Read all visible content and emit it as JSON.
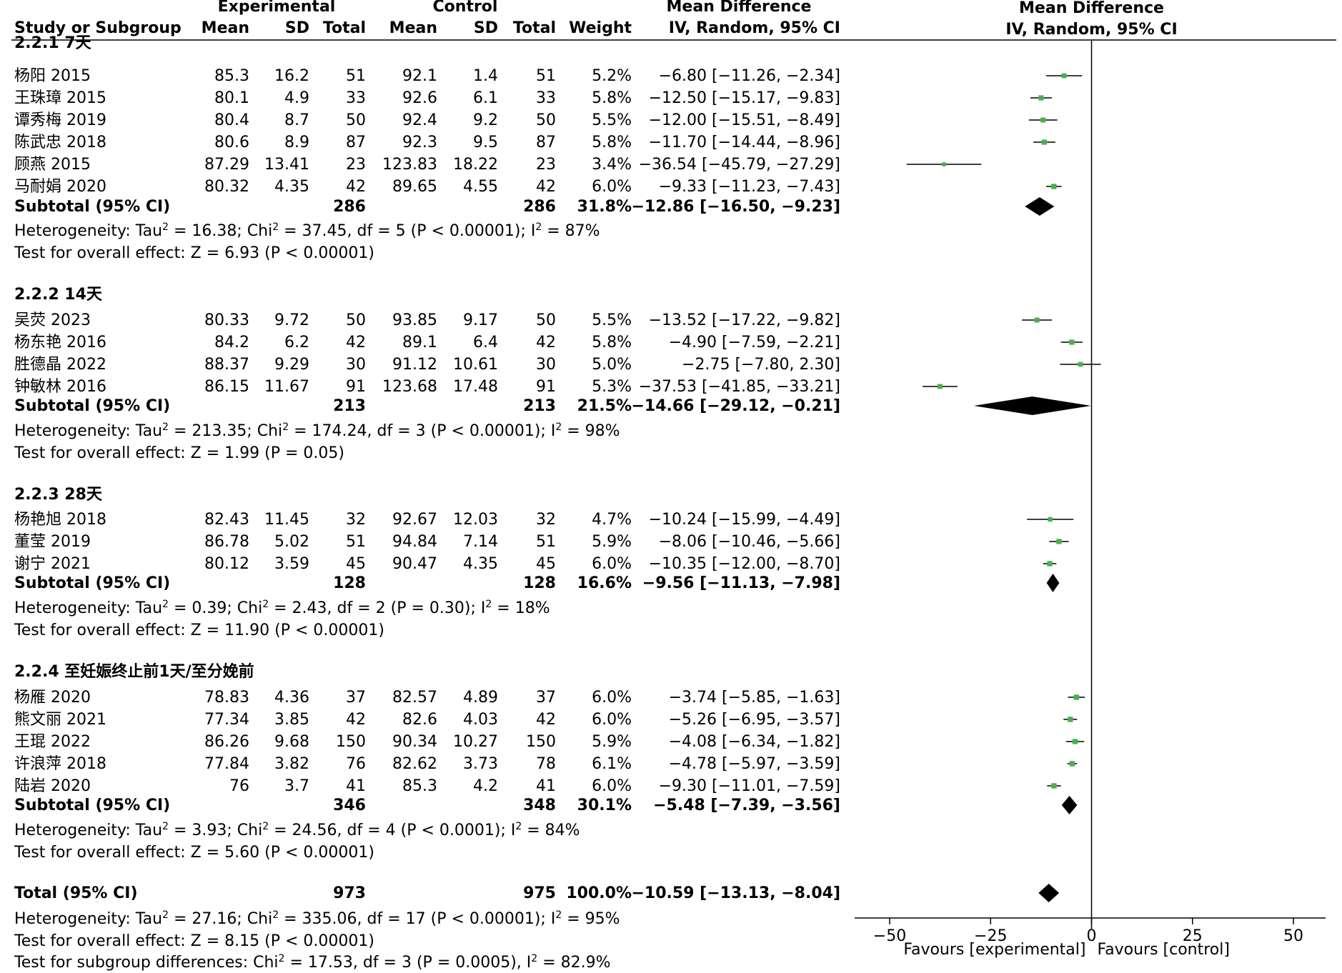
{
  "header": {
    "experimental": "Experimental",
    "control": "Control",
    "mean_difference_table": "Mean Difference",
    "mean_difference_plot": "Mean Difference",
    "study": "Study or Subgroup",
    "mean_e": "Mean",
    "sd_e": "SD",
    "total_e": "Total",
    "mean_c": "Mean",
    "sd_c": "SD",
    "total_c": "Total",
    "weight": "Weight",
    "method_table": "IV, Random, 95% CI",
    "method_plot": "IV, Random, 95% CI"
  },
  "subgroups": [
    {
      "title": "2.2.1 7天",
      "studies": [
        {
          "name": "杨阳 2015",
          "mean_e": "85.3",
          "sd_e": "16.2",
          "total_e": "51",
          "mean_c": "92.1",
          "sd_c": "1.4",
          "total_c": "51",
          "weight": "5.2%",
          "ci": "−6.80 [−11.26, −2.34]"
        },
        {
          "name": "王珠璋 2015",
          "mean_e": "80.1",
          "sd_e": "4.9",
          "total_e": "33",
          "mean_c": "92.6",
          "sd_c": "6.1",
          "total_c": "33",
          "weight": "5.8%",
          "ci": "−12.50 [−15.17, −9.83]"
        },
        {
          "name": "谭秀梅 2019",
          "mean_e": "80.4",
          "sd_e": "8.7",
          "total_e": "50",
          "mean_c": "92.4",
          "sd_c": "9.2",
          "total_c": "50",
          "weight": "5.5%",
          "ci": "−12.00 [−15.51, −8.49]"
        },
        {
          "name": "陈武忠 2018",
          "mean_e": "80.6",
          "sd_e": "8.9",
          "total_e": "87",
          "mean_c": "92.3",
          "sd_c": "9.5",
          "total_c": "87",
          "weight": "5.8%",
          "ci": "−11.70 [−14.44, −8.96]"
        },
        {
          "name": "顾燕 2015",
          "mean_e": "87.29",
          "sd_e": "13.41",
          "total_e": "23",
          "mean_c": "123.83",
          "sd_c": "18.22",
          "total_c": "23",
          "weight": "3.4%",
          "ci": "−36.54 [−45.79, −27.29]"
        },
        {
          "name": "马耐娟 2020",
          "mean_e": "80.32",
          "sd_e": "4.35",
          "total_e": "42",
          "mean_c": "89.65",
          "sd_c": "4.55",
          "total_c": "42",
          "weight": "6.0%",
          "ci": "−9.33 [−11.23, −7.43]"
        }
      ],
      "subtotal": {
        "label": "Subtotal (95% CI)",
        "total_e": "286",
        "total_c": "286",
        "weight": "31.8%",
        "ci": "−12.86 [−16.50, −9.23]"
      },
      "het_a": "Heterogeneity: Tau",
      "het_b": " = 16.38; Chi",
      "het_c": " = 37.45, df = 5 (P < 0.00001); I",
      "het_d": " = 87%",
      "overall": "Test for overall effect: Z = 6.93 (P < 0.00001)"
    },
    {
      "title": "2.2.2 14天",
      "studies": [
        {
          "name": "吴荧 2023",
          "mean_e": "80.33",
          "sd_e": "9.72",
          "total_e": "50",
          "mean_c": "93.85",
          "sd_c": "9.17",
          "total_c": "50",
          "weight": "5.5%",
          "ci": "−13.52 [−17.22, −9.82]"
        },
        {
          "name": "杨东艳 2016",
          "mean_e": "84.2",
          "sd_e": "6.2",
          "total_e": "42",
          "mean_c": "89.1",
          "sd_c": "6.4",
          "total_c": "42",
          "weight": "5.8%",
          "ci": "−4.90 [−7.59, −2.21]"
        },
        {
          "name": "胜德晶 2022",
          "mean_e": "88.37",
          "sd_e": "9.29",
          "total_e": "30",
          "mean_c": "91.12",
          "sd_c": "10.61",
          "total_c": "30",
          "weight": "5.0%",
          "ci": "−2.75 [−7.80, 2.30]"
        },
        {
          "name": "钟敏林 2016",
          "mean_e": "86.15",
          "sd_e": "11.67",
          "total_e": "91",
          "mean_c": "123.68",
          "sd_c": "17.48",
          "total_c": "91",
          "weight": "5.3%",
          "ci": "−37.53 [−41.85, −33.21]"
        }
      ],
      "subtotal": {
        "label": "Subtotal (95% CI)",
        "total_e": "213",
        "total_c": "213",
        "weight": "21.5%",
        "ci": "−14.66 [−29.12, −0.21]"
      },
      "het_a": "Heterogeneity: Tau",
      "het_b": " = 213.35; Chi",
      "het_c": " = 174.24, df = 3 (P < 0.00001); I",
      "het_d": " = 98%",
      "overall": "Test for overall effect: Z = 1.99 (P = 0.05)"
    },
    {
      "title": "2.2.3 28天",
      "studies": [
        {
          "name": "杨艳旭 2018",
          "mean_e": "82.43",
          "sd_e": "11.45",
          "total_e": "32",
          "mean_c": "92.67",
          "sd_c": "12.03",
          "total_c": "32",
          "weight": "4.7%",
          "ci": "−10.24 [−15.99, −4.49]"
        },
        {
          "name": "董莹 2019",
          "mean_e": "86.78",
          "sd_e": "5.02",
          "total_e": "51",
          "mean_c": "94.84",
          "sd_c": "7.14",
          "total_c": "51",
          "weight": "5.9%",
          "ci": "−8.06 [−10.46, −5.66]"
        },
        {
          "name": "谢宁 2021",
          "mean_e": "80.12",
          "sd_e": "3.59",
          "total_e": "45",
          "mean_c": "90.47",
          "sd_c": "4.35",
          "total_c": "45",
          "weight": "6.0%",
          "ci": "−10.35 [−12.00, −8.70]"
        }
      ],
      "subtotal": {
        "label": "Subtotal (95% CI)",
        "total_e": "128",
        "total_c": "128",
        "weight": "16.6%",
        "ci": "−9.56 [−11.13, −7.98]"
      },
      "het_a": "Heterogeneity: Tau",
      "het_b": " = 0.39; Chi",
      "het_c": " = 2.43, df = 2 (P = 0.30); I",
      "het_d": " = 18%",
      "overall": "Test for overall effect: Z = 11.90 (P < 0.00001)"
    },
    {
      "title": "2.2.4 至妊娠终止前1天/至分娩前",
      "studies": [
        {
          "name": "杨雁 2020",
          "mean_e": "78.83",
          "sd_e": "4.36",
          "total_e": "37",
          "mean_c": "82.57",
          "sd_c": "4.89",
          "total_c": "37",
          "weight": "6.0%",
          "ci": "−3.74 [−5.85, −1.63]"
        },
        {
          "name": "熊文丽 2021",
          "mean_e": "77.34",
          "sd_e": "3.85",
          "total_e": "42",
          "mean_c": "82.6",
          "sd_c": "4.03",
          "total_c": "42",
          "weight": "6.0%",
          "ci": "−5.26 [−6.95, −3.57]"
        },
        {
          "name": "王琨 2022",
          "mean_e": "86.26",
          "sd_e": "9.68",
          "total_e": "150",
          "mean_c": "90.34",
          "sd_c": "10.27",
          "total_c": "150",
          "weight": "5.9%",
          "ci": "−4.08 [−6.34, −1.82]"
        },
        {
          "name": "许浪萍 2018",
          "mean_e": "77.84",
          "sd_e": "3.82",
          "total_e": "76",
          "mean_c": "82.62",
          "sd_c": "3.73",
          "total_c": "78",
          "weight": "6.1%",
          "ci": "−4.78 [−5.97, −3.59]"
        },
        {
          "name": "陆岩 2020",
          "mean_e": "76",
          "sd_e": "3.7",
          "total_e": "41",
          "mean_c": "85.3",
          "sd_c": "4.2",
          "total_c": "41",
          "weight": "6.0%",
          "ci": "−9.30 [−11.01, −7.59]"
        }
      ],
      "subtotal": {
        "label": "Subtotal (95% CI)",
        "total_e": "346",
        "total_c": "348",
        "weight": "30.1%",
        "ci": "−5.48 [−7.39, −3.56]"
      },
      "het_a": "Heterogeneity: Tau",
      "het_b": " = 3.93; Chi",
      "het_c": " = 24.56, df = 4 (P < 0.0001); I",
      "het_d": " = 84%",
      "overall": "Test for overall effect: Z = 5.60 (P < 0.00001)"
    }
  ],
  "total": {
    "label": "Total (95% CI)",
    "total_e": "973",
    "total_c": "975",
    "weight": "100.0%",
    "ci": "−10.59 [−13.13, −8.04]",
    "het_a": "Heterogeneity: Tau",
    "het_b": " = 27.16; Chi",
    "het_c": " = 335.06, df = 17 (P < 0.00001); I",
    "het_d": " = 95%",
    "overall": "Test for overall effect: Z = 8.15 (P < 0.00001)",
    "subgroup_a": "Test for subgroup differences: Chi",
    "subgroup_b": " = 17.53, df = 3 (P = 0.0005), I",
    "subgroup_c": " = 82.9%"
  },
  "superscript": "2",
  "axis": {
    "ticks": [
      "−50",
      "−25",
      "0",
      "25",
      "50"
    ],
    "favours_left": "Favours [experimental]",
    "favours_right": "Favours [control]"
  },
  "colors": {
    "study_marker": "#4caf50",
    "diamond": "#000000",
    "text": "#000000"
  },
  "chart_data": {
    "type": "forest",
    "xlim": [
      -50,
      50
    ],
    "xticks": [
      -50,
      -25,
      0,
      25,
      50
    ],
    "reference_line": 0,
    "studies": [
      {
        "study": "杨阳 2015",
        "md": -6.8,
        "lo": -11.26,
        "hi": -2.34,
        "weight": 5.2
      },
      {
        "study": "王珠璋 2015",
        "md": -12.5,
        "lo": -15.17,
        "hi": -9.83,
        "weight": 5.8
      },
      {
        "study": "谭秀梅 2019",
        "md": -12.0,
        "lo": -15.51,
        "hi": -8.49,
        "weight": 5.5
      },
      {
        "study": "陈武忠 2018",
        "md": -11.7,
        "lo": -14.44,
        "hi": -8.96,
        "weight": 5.8
      },
      {
        "study": "顾燕 2015",
        "md": -36.54,
        "lo": -45.79,
        "hi": -27.29,
        "weight": 3.4
      },
      {
        "study": "马耐娟 2020",
        "md": -9.33,
        "lo": -11.23,
        "hi": -7.43,
        "weight": 6.0
      },
      {
        "study": "吴荧 2023",
        "md": -13.52,
        "lo": -17.22,
        "hi": -9.82,
        "weight": 5.5
      },
      {
        "study": "杨东艳 2016",
        "md": -4.9,
        "lo": -7.59,
        "hi": -2.21,
        "weight": 5.8
      },
      {
        "study": "胜德晶 2022",
        "md": -2.75,
        "lo": -7.8,
        "hi": 2.3,
        "weight": 5.0
      },
      {
        "study": "钟敏林 2016",
        "md": -37.53,
        "lo": -41.85,
        "hi": -33.21,
        "weight": 5.3
      },
      {
        "study": "杨艳旭 2018",
        "md": -10.24,
        "lo": -15.99,
        "hi": -4.49,
        "weight": 4.7
      },
      {
        "study": "董莹 2019",
        "md": -8.06,
        "lo": -10.46,
        "hi": -5.66,
        "weight": 5.9
      },
      {
        "study": "谢宁 2021",
        "md": -10.35,
        "lo": -12.0,
        "hi": -8.7,
        "weight": 6.0
      },
      {
        "study": "杨雁 2020",
        "md": -3.74,
        "lo": -5.85,
        "hi": -1.63,
        "weight": 6.0
      },
      {
        "study": "熊文丽 2021",
        "md": -5.26,
        "lo": -6.95,
        "hi": -3.57,
        "weight": 6.0
      },
      {
        "study": "王琨 2022",
        "md": -4.08,
        "lo": -6.34,
        "hi": -1.82,
        "weight": 5.9
      },
      {
        "study": "许浪萍 2018",
        "md": -4.78,
        "lo": -5.97,
        "hi": -3.59,
        "weight": 6.1
      },
      {
        "study": "陆岩 2020",
        "md": -9.3,
        "lo": -11.01,
        "hi": -7.59,
        "weight": 6.0
      }
    ],
    "subtotals": [
      {
        "subgroup": "2.2.1 7天",
        "md": -12.86,
        "lo": -16.5,
        "hi": -9.23
      },
      {
        "subgroup": "2.2.2 14天",
        "md": -14.66,
        "lo": -29.12,
        "hi": -0.21
      },
      {
        "subgroup": "2.2.3 28天",
        "md": -9.56,
        "lo": -11.13,
        "hi": -7.98
      },
      {
        "subgroup": "2.2.4 至妊娠终止前1天/至分娩前",
        "md": -5.48,
        "lo": -7.39,
        "hi": -3.56
      }
    ],
    "overall": {
      "md": -10.59,
      "lo": -13.13,
      "hi": -8.04
    }
  }
}
